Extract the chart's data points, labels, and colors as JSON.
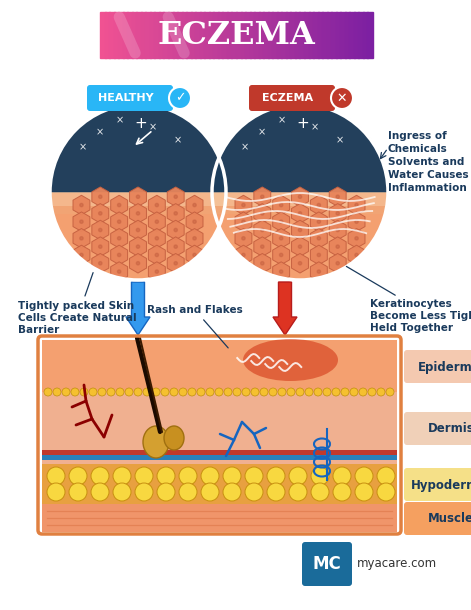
{
  "title": "ECZEMA",
  "bg_color": "#ffffff",
  "healthy_label": "HEALTHY",
  "eczema_label": "ECZEMA",
  "healthy_badge_color": "#29b6f6",
  "eczema_badge_color": "#c0392b",
  "skin_layers": [
    "Epidermis",
    "Dermis",
    "Hypodermis",
    "Muscle"
  ],
  "label_box_colors": [
    "#f4c9b0",
    "#f0d0b8",
    "#f5e088",
    "#f5a060"
  ],
  "annotations": {
    "tightly_packed": "Tightly packed Skin\nCells Create Natural\nBarrier",
    "rash_flakes": "Rash and Flakes",
    "keratinocytes": "Keratinocytes\nBecome Less Tightly\nHeld Together",
    "ingress": "Ingress of\nChemicals\nSolvents and\nWater Causes\nInflammation"
  },
  "myacare_box_color": "#1a6b9a",
  "myacare_text": "myacare.com"
}
